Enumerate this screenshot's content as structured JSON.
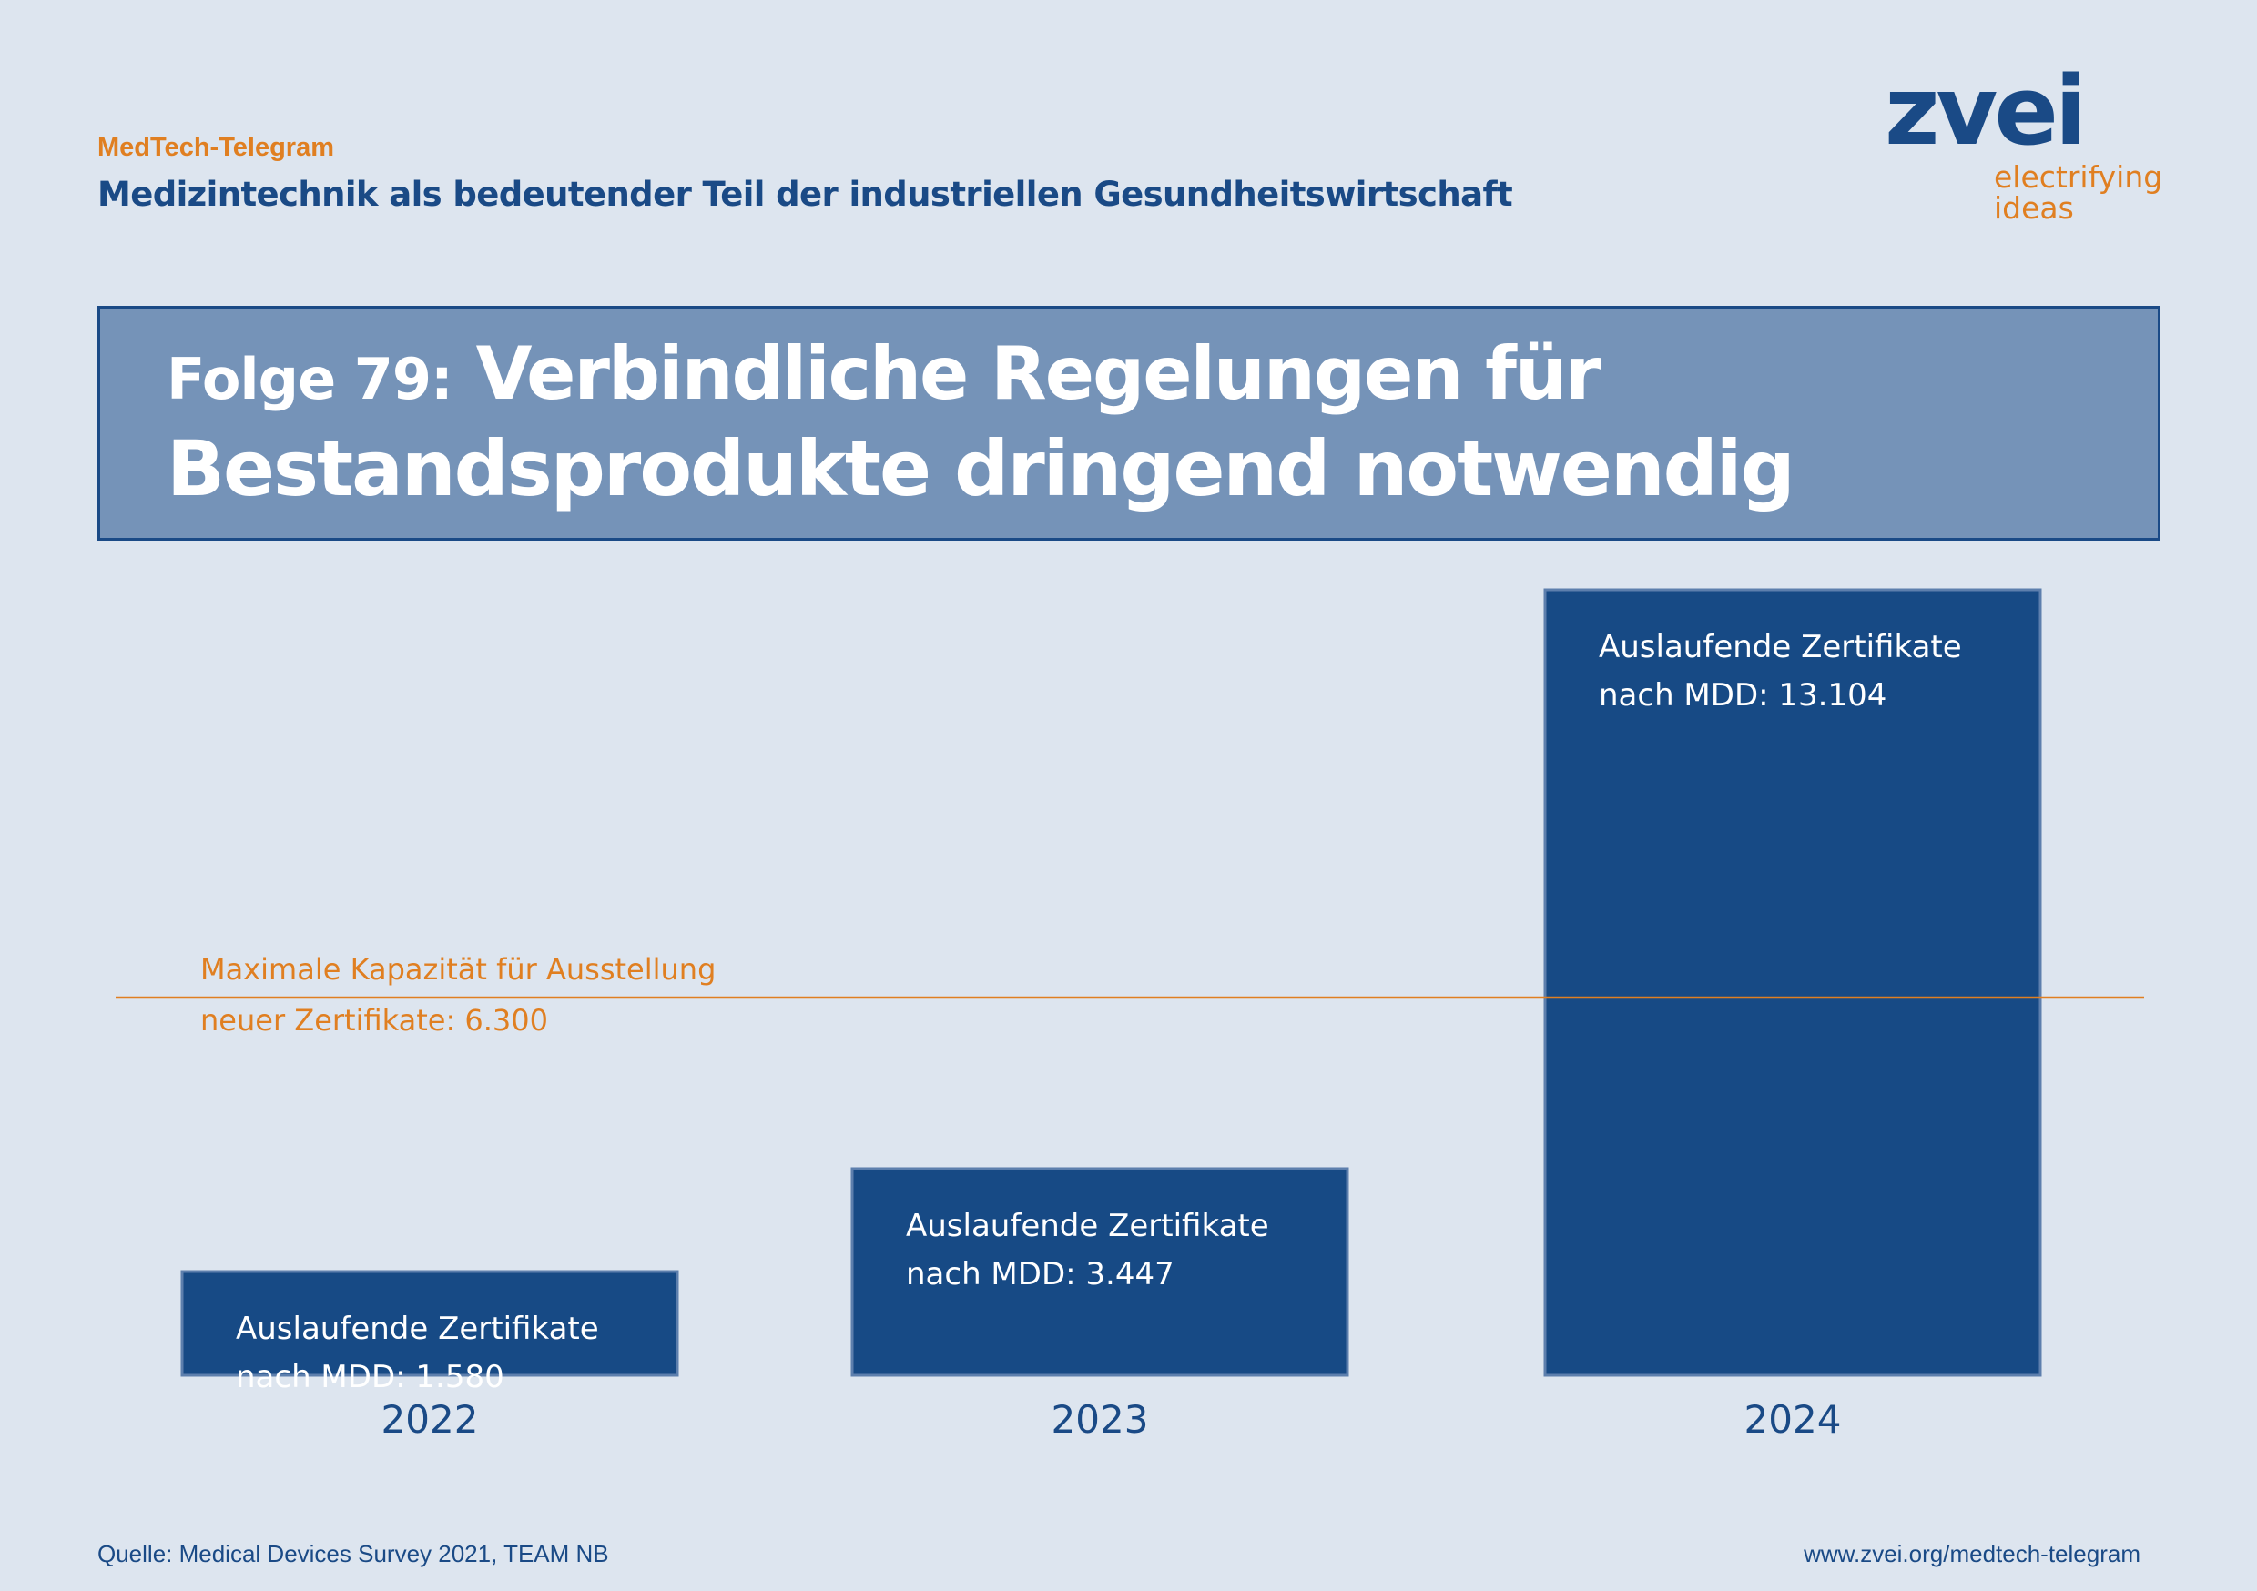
{
  "header": {
    "series": "MedTech-Telegram",
    "subtitle": "Medizintechnik als bedeutender Teil der industriellen Gesundheitswirtschaft"
  },
  "logo": {
    "word": "zvei",
    "tagline_line1": "electrifying",
    "tagline_line2": "ideas"
  },
  "title": {
    "prefix": "Folge 79:",
    "line1": "Verbindliche Regelungen für",
    "line2": "Bestandsprodukte dringend notwendig"
  },
  "chart_data": {
    "type": "bar",
    "categories": [
      "2022",
      "2023",
      "2024"
    ],
    "values": [
      1580,
      3447,
      13104
    ],
    "bar_labels": [
      [
        "Auslaufende Zertifikate",
        "nach MDD: 1.580"
      ],
      [
        "Auslaufende Zertifikate",
        "nach MDD: 3.447"
      ],
      [
        "Auslaufende Zertifikate",
        "nach MDD: 13.104"
      ]
    ],
    "reference_line": {
      "value": 6300,
      "label_line1": "Maximale Kapazität für Ausstellung",
      "label_line2": "neuer Zertifikate: 6.300"
    },
    "title": "",
    "xlabel": "",
    "ylabel": "",
    "grid": false,
    "legend": "none",
    "colors": {
      "bar": "#174a85",
      "bar_border": "#5d7fad",
      "reference": "#e07f21",
      "bar_text": "#ffffff",
      "tick_text": "#1a4a86"
    }
  },
  "footer": {
    "source": "Quelle: Medical Devices Survey 2021, TEAM NB",
    "url": "www.zvei.org/medtech-telegram"
  }
}
